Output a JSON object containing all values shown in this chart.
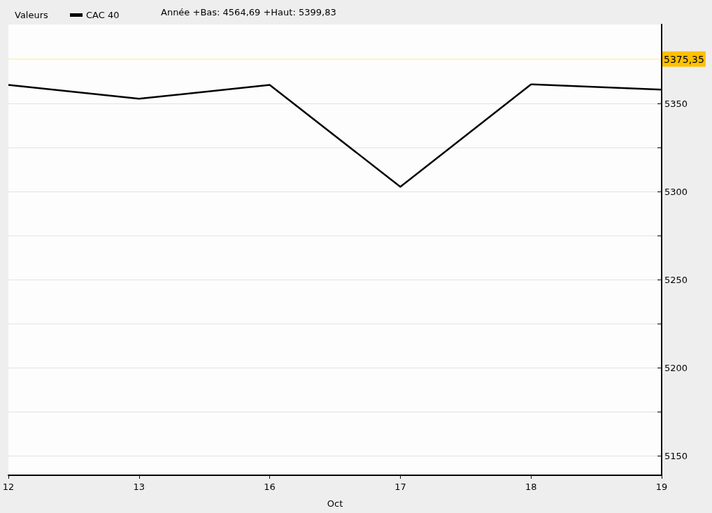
{
  "chart_data": {
    "type": "line",
    "title": "Valeurs",
    "categories": [
      "12",
      "13",
      "16",
      "17",
      "18",
      "19"
    ],
    "xlabel": "Oct",
    "series": [
      {
        "name": "CAC 40",
        "color": "#000000",
        "values": [
          5360.7,
          5352.8,
          5360.7,
          5302.8,
          5361.0,
          5358.0
        ]
      }
    ],
    "ylim": [
      5139,
      5395
    ],
    "yticks": [
      5150,
      {
        "value": 5175,
        "label": null
      },
      5200,
      {
        "value": 5225,
        "label": null
      },
      5250,
      {
        "value": 5275,
        "label": null
      },
      5300,
      {
        "value": 5325,
        "label": null
      },
      5350
    ],
    "ref_lines": [
      {
        "axis": "y",
        "value": 5375.35,
        "label": "5375,35",
        "color": "#ffc000"
      }
    ],
    "annotations": [
      "Année +Bas: 4564,69 +Haut: 5399,83"
    ],
    "grid": "y",
    "legend": "top left",
    "marker": "none",
    "line_style": "solid"
  }
}
